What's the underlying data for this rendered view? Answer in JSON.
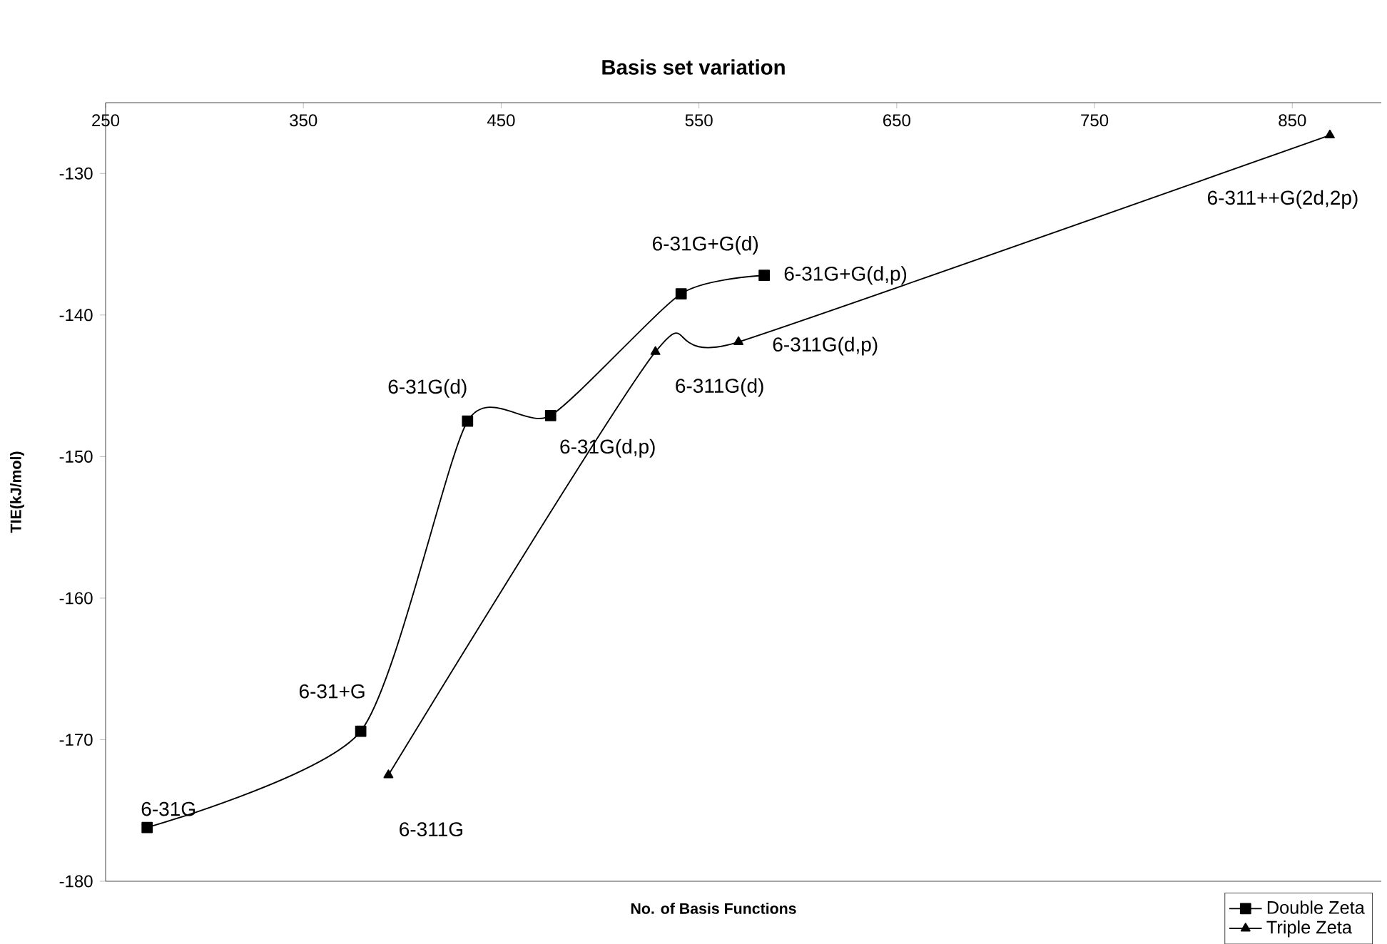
{
  "chart_data": {
    "type": "line",
    "title": "Basis set variation",
    "xlabel": "No. of Basis Functions",
    "ylabel": "TIE(kJ/mol)",
    "xlim": [
      250,
      895
    ],
    "xticks": [
      250,
      350,
      450,
      550,
      650,
      750,
      850
    ],
    "ylim": [
      -180,
      -125
    ],
    "yticks": [
      -180,
      -170,
      -160,
      -150,
      -140,
      -130
    ],
    "grid": false,
    "legend": "bottom right",
    "line_style": "solid",
    "series": [
      {
        "name": "Double Zeta",
        "color": "#000000",
        "marker": "square",
        "x": [
          271,
          379,
          433,
          475,
          541,
          583
        ],
        "values": [
          -176.2,
          -169.4,
          -147.5,
          -147.1,
          -138.5,
          -137.2
        ]
      },
      {
        "name": "Triple Zeta",
        "color": "#000000",
        "marker": "triangle",
        "x": [
          393,
          528,
          570,
          869
        ],
        "values": [
          -172.5,
          -142.6,
          -141.9,
          -127.3
        ]
      }
    ],
    "annotations": [
      {
        "text": "6-31G",
        "x": 271,
        "y": -176.2
      },
      {
        "text": "6-31+G",
        "x": 379,
        "y": -169.4
      },
      {
        "text": "6-31G(d)",
        "x": 433,
        "y": -147.5
      },
      {
        "text": "6-31G(d,p)",
        "x": 475,
        "y": -147.1
      },
      {
        "text": "6-31G+G(d)",
        "x": 541,
        "y": -138.5
      },
      {
        "text": "6-31G+G(d,p)",
        "x": 583,
        "y": -137.2
      },
      {
        "text": "6-311G",
        "x": 393,
        "y": -172.5
      },
      {
        "text": "6-311G(d)",
        "x": 528,
        "y": -142.6
      },
      {
        "text": "6-311G(d,p)",
        "x": 570,
        "y": -141.9
      },
      {
        "text": "6-311++G(2d,2p)",
        "x": 869,
        "y": -127.3
      }
    ]
  }
}
